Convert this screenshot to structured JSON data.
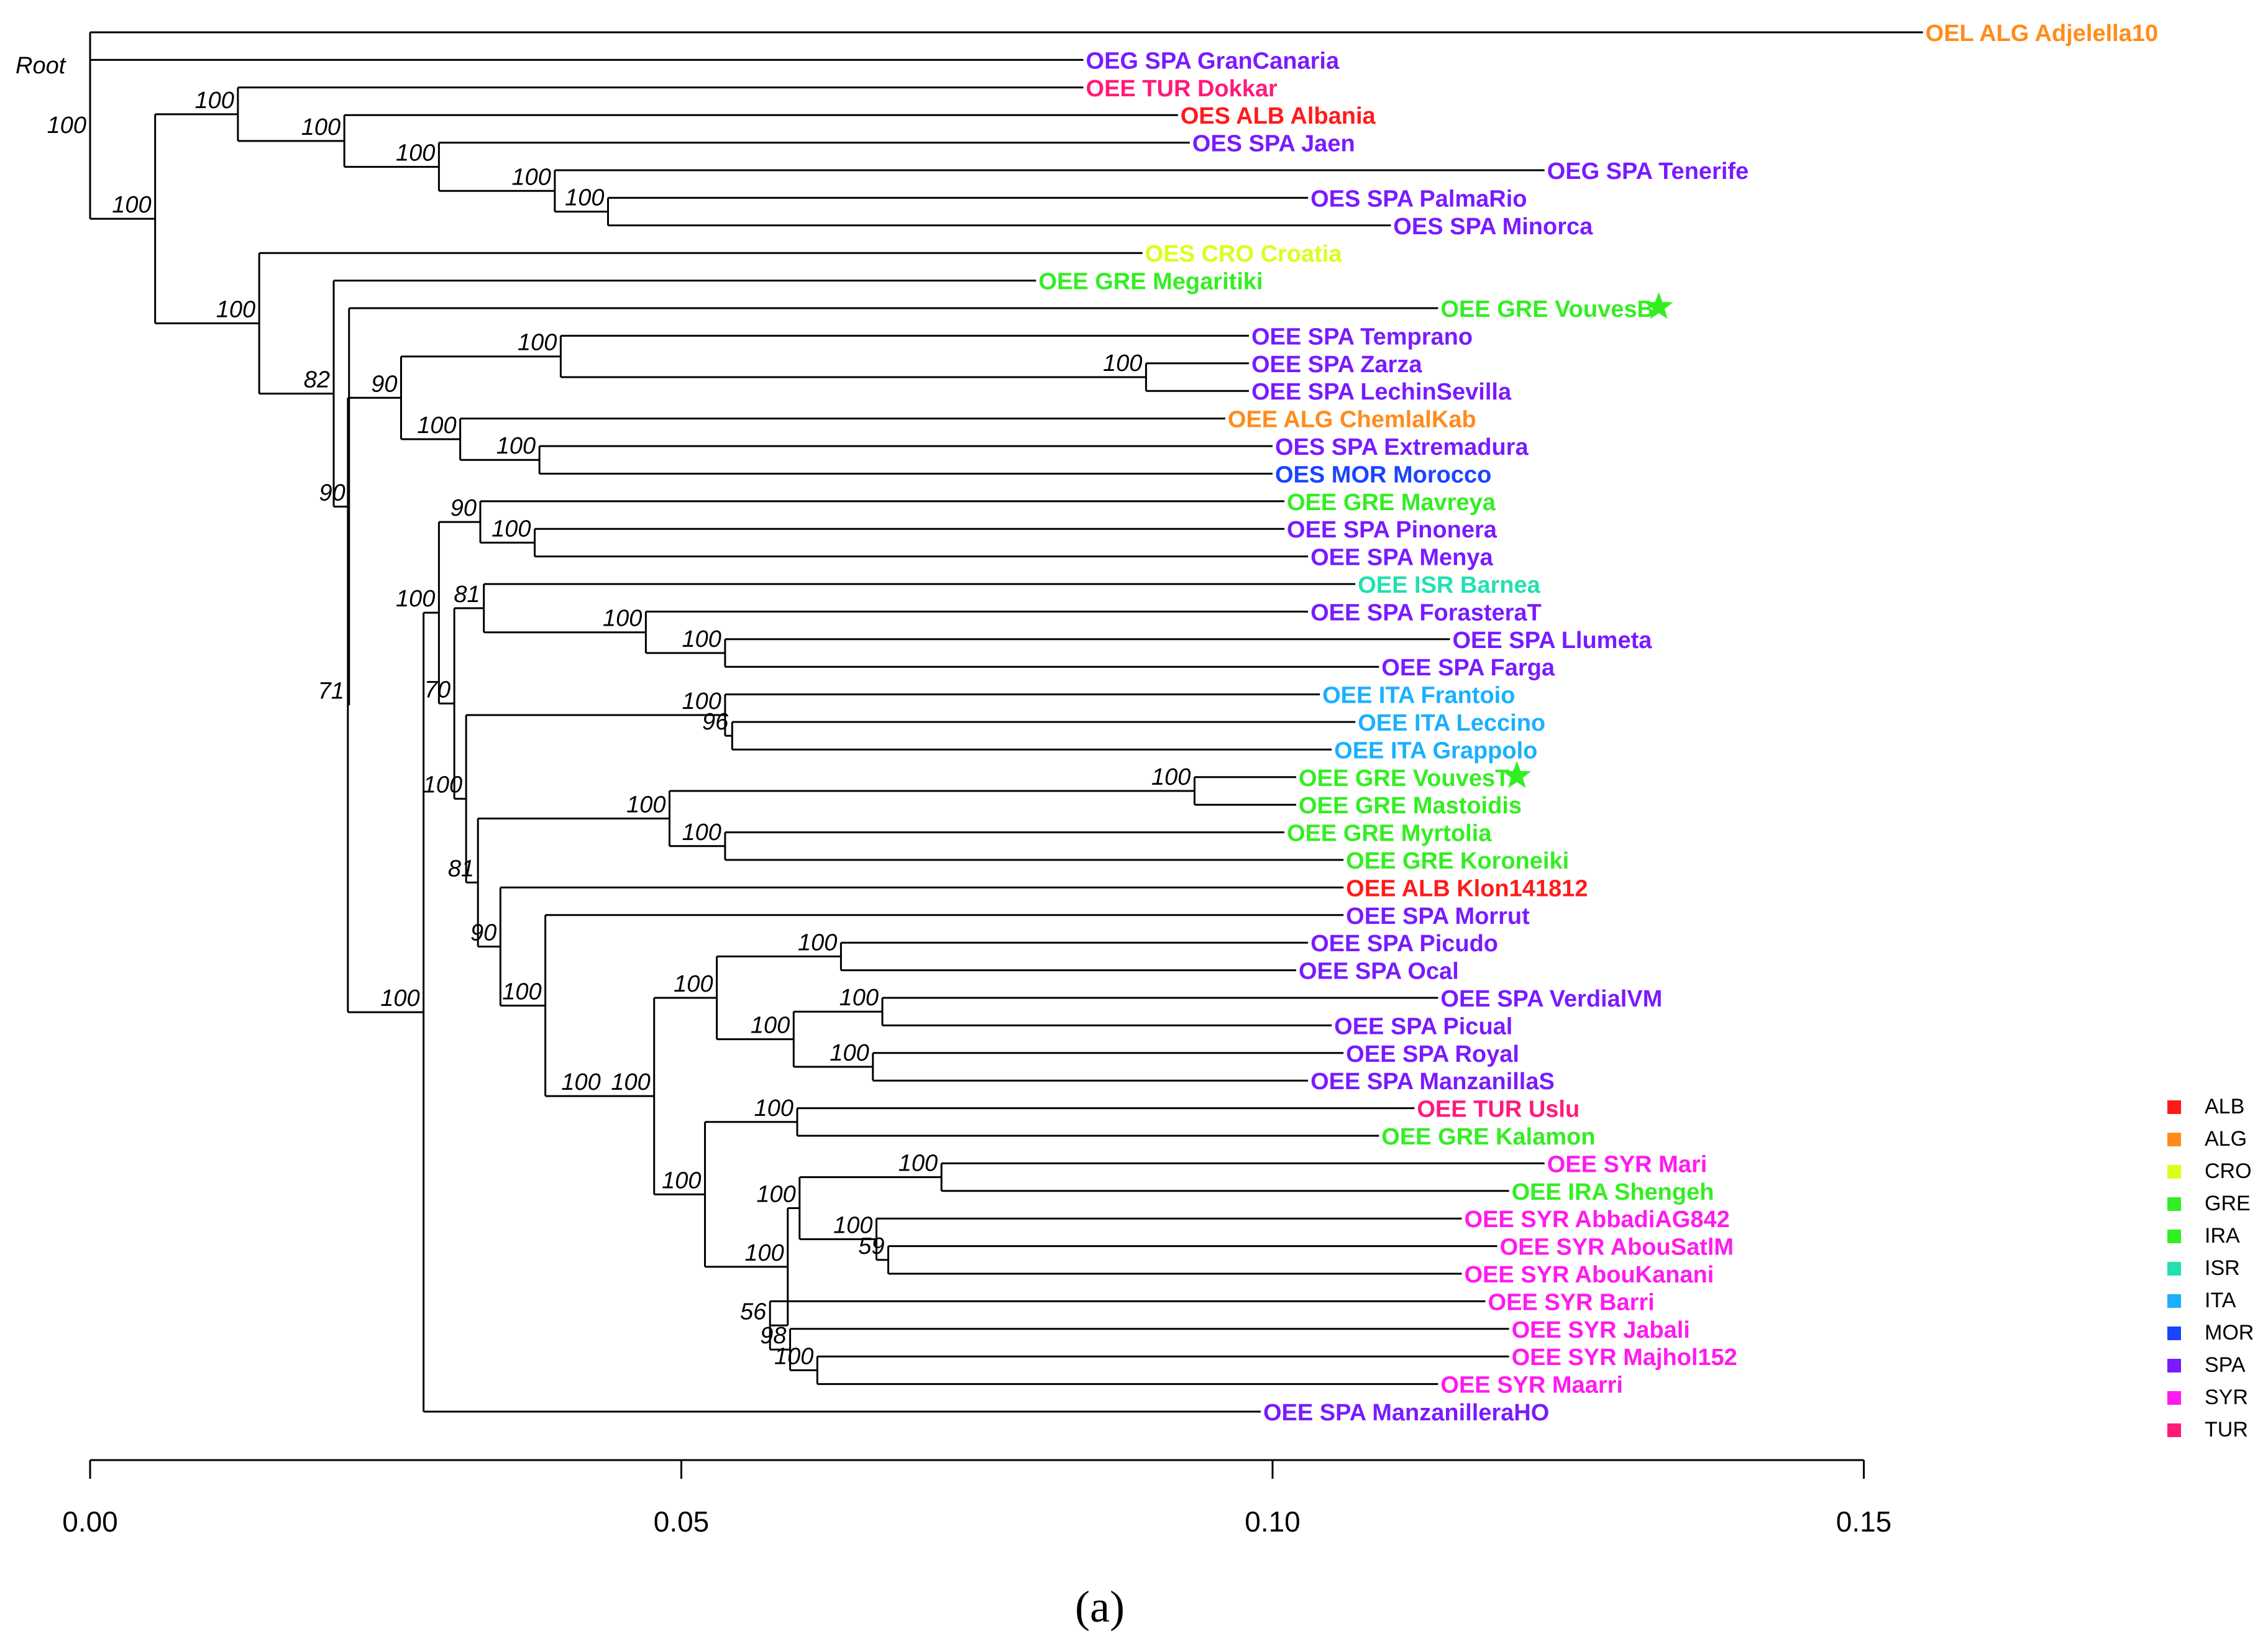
{
  "root_label": "Root",
  "axis": {
    "min": 0,
    "max": 0.15,
    "ticks": [
      "0.00",
      "0.05",
      "0.10",
      "0.15"
    ]
  },
  "caption": "(a)",
  "colors": {
    "ALB": "#ff1a1a",
    "ALG": "#ff8c1a",
    "CRO": "#d9ff1a",
    "GRE": "#33ee22",
    "IRA": "#33ee22",
    "ISR": "#22e0b0",
    "ITA": "#1ab0ff",
    "MOR": "#1a44ff",
    "SPA": "#7a1aff",
    "SYR": "#ff1aee",
    "TUR": "#ff1a7a"
  },
  "legend": [
    "ALB",
    "ALG",
    "CRO",
    "GRE",
    "IRA",
    "ISR",
    "ITA",
    "MOR",
    "SPA",
    "SYR",
    "TUR"
  ],
  "leaves": [
    {
      "id": "L0",
      "label": "OEL ALG Adjelella10",
      "country": "ALG",
      "dist": 0.155
    },
    {
      "id": "L1",
      "label": "OEG SPA GranCanaria",
      "country": "SPA",
      "dist": 0.084
    },
    {
      "id": "L2",
      "label": "OEE TUR Dokkar",
      "country": "TUR",
      "dist": 0.084
    },
    {
      "id": "L3",
      "label": "OES ALB Albania",
      "country": "ALB",
      "dist": 0.092
    },
    {
      "id": "L4",
      "label": "OES SPA Jaen",
      "country": "SPA",
      "dist": 0.093
    },
    {
      "id": "L5",
      "label": "OEG SPA Tenerife",
      "country": "SPA",
      "dist": 0.123
    },
    {
      "id": "L6",
      "label": "OES SPA PalmaRio",
      "country": "SPA",
      "dist": 0.103
    },
    {
      "id": "L7",
      "label": "OES SPA Minorca",
      "country": "SPA",
      "dist": 0.11
    },
    {
      "id": "L8",
      "label": "OES CRO Croatia",
      "country": "CRO",
      "dist": 0.089
    },
    {
      "id": "L9",
      "label": "OEE GRE Megaritiki",
      "country": "GRE",
      "dist": 0.08
    },
    {
      "id": "L10",
      "label": "OEE GRE VouvesB*",
      "country": "GRE",
      "dist": 0.114,
      "star": true
    },
    {
      "id": "L11",
      "label": "OEE SPA Temprano",
      "country": "SPA",
      "dist": 0.098
    },
    {
      "id": "L12",
      "label": "OEE SPA Zarza",
      "country": "SPA",
      "dist": 0.098
    },
    {
      "id": "L13",
      "label": "OEE SPA LechinSevilla",
      "country": "SPA",
      "dist": 0.098
    },
    {
      "id": "L14",
      "label": "OEE ALG ChemlalKab",
      "country": "ALG",
      "dist": 0.096
    },
    {
      "id": "L15",
      "label": "OES SPA Extremadura",
      "country": "SPA",
      "dist": 0.1
    },
    {
      "id": "L16",
      "label": "OES MOR Morocco",
      "country": "MOR",
      "dist": 0.1
    },
    {
      "id": "L17",
      "label": "OEE GRE Mavreya",
      "country": "GRE",
      "dist": 0.101
    },
    {
      "id": "L18",
      "label": "OEE SPA Pinonera",
      "country": "SPA",
      "dist": 0.101
    },
    {
      "id": "L19",
      "label": "OEE SPA Menya",
      "country": "SPA",
      "dist": 0.103
    },
    {
      "id": "L20",
      "label": "OEE ISR Barnea",
      "country": "ISR",
      "dist": 0.107
    },
    {
      "id": "L21",
      "label": "OEE SPA ForasteraT",
      "country": "SPA",
      "dist": 0.103
    },
    {
      "id": "L22",
      "label": "OEE SPA Llumeta",
      "country": "SPA",
      "dist": 0.115
    },
    {
      "id": "L23",
      "label": "OEE SPA Farga",
      "country": "SPA",
      "dist": 0.109
    },
    {
      "id": "L24",
      "label": "OEE ITA Frantoio",
      "country": "ITA",
      "dist": 0.104
    },
    {
      "id": "L25",
      "label": "OEE ITA Leccino",
      "country": "ITA",
      "dist": 0.107
    },
    {
      "id": "L26",
      "label": "OEE ITA Grappolo",
      "country": "ITA",
      "dist": 0.105
    },
    {
      "id": "L27",
      "label": "OEE GRE VouvesT*",
      "country": "GRE",
      "dist": 0.102,
      "star": true
    },
    {
      "id": "L28",
      "label": "OEE GRE Mastoidis",
      "country": "GRE",
      "dist": 0.102
    },
    {
      "id": "L29",
      "label": "OEE GRE Myrtolia",
      "country": "GRE",
      "dist": 0.101
    },
    {
      "id": "L30",
      "label": "OEE GRE Koroneiki",
      "country": "GRE",
      "dist": 0.106
    },
    {
      "id": "L31",
      "label": "OEE ALB Klon141812",
      "country": "ALB",
      "dist": 0.106
    },
    {
      "id": "L32",
      "label": "OEE SPA Morrut",
      "country": "SPA",
      "dist": 0.106
    },
    {
      "id": "L33",
      "label": "OEE SPA Picudo",
      "country": "SPA",
      "dist": 0.103
    },
    {
      "id": "L34",
      "label": "OEE SPA Ocal",
      "country": "SPA",
      "dist": 0.102
    },
    {
      "id": "L35",
      "label": "OEE SPA VerdialVM",
      "country": "SPA",
      "dist": 0.114
    },
    {
      "id": "L36",
      "label": "OEE SPA Picual",
      "country": "SPA",
      "dist": 0.105
    },
    {
      "id": "L37",
      "label": "OEE SPA Royal",
      "country": "SPA",
      "dist": 0.106
    },
    {
      "id": "L38",
      "label": "OEE SPA ManzanillaS",
      "country": "SPA",
      "dist": 0.103
    },
    {
      "id": "L39",
      "label": "OEE TUR Uslu",
      "country": "TUR",
      "dist": 0.112
    },
    {
      "id": "L40",
      "label": "OEE GRE Kalamon",
      "country": "GRE",
      "dist": 0.109
    },
    {
      "id": "L41",
      "label": "OEE SYR Mari",
      "country": "SYR",
      "dist": 0.123
    },
    {
      "id": "L42",
      "label": "OEE IRA Shengeh",
      "country": "IRA",
      "dist": 0.12
    },
    {
      "id": "L43",
      "label": "OEE SYR AbbadiAG842",
      "country": "SYR",
      "dist": 0.116
    },
    {
      "id": "L44",
      "label": "OEE SYR AbouSatlM",
      "country": "SYR",
      "dist": 0.119
    },
    {
      "id": "L45",
      "label": "OEE SYR AbouKanani",
      "country": "SYR",
      "dist": 0.116
    },
    {
      "id": "L46",
      "label": "OEE SYR Barri",
      "country": "SYR",
      "dist": 0.118
    },
    {
      "id": "L47",
      "label": "OEE SYR Jabali",
      "country": "SYR",
      "dist": 0.12
    },
    {
      "id": "L48",
      "label": "OEE SYR Majhol152",
      "country": "SYR",
      "dist": 0.12
    },
    {
      "id": "L49",
      "label": "OEE SYR Maarri",
      "country": "SYR",
      "dist": 0.114
    },
    {
      "id": "L50",
      "label": "OEE SPA ManzanilleraHO",
      "country": "SPA",
      "dist": 0.099
    }
  ],
  "nodes": [
    {
      "id": "N_root",
      "dist": 0.0,
      "boot": "",
      "children": [
        "L0",
        "N1"
      ]
    },
    {
      "id": "N1",
      "dist": 0.0,
      "boot": "100",
      "children": [
        "L1",
        "N2"
      ]
    },
    {
      "id": "N2",
      "dist": 0.0055,
      "boot": "100",
      "children": [
        "N3",
        "N8"
      ]
    },
    {
      "id": "N3",
      "dist": 0.0125,
      "boot": "100",
      "children": [
        "L2",
        "N4"
      ]
    },
    {
      "id": "N4",
      "dist": 0.0215,
      "boot": "100",
      "children": [
        "L3",
        "N5"
      ]
    },
    {
      "id": "N5",
      "dist": 0.0295,
      "boot": "100",
      "children": [
        "L4",
        "N6"
      ]
    },
    {
      "id": "N6",
      "dist": 0.0393,
      "boot": "100",
      "children": [
        "L5",
        "N7"
      ]
    },
    {
      "id": "N7",
      "dist": 0.0438,
      "boot": "100",
      "children": [
        "L6",
        "L7"
      ]
    },
    {
      "id": "N8",
      "dist": 0.0143,
      "boot": "100",
      "children": [
        "L8",
        "N9"
      ]
    },
    {
      "id": "N9",
      "dist": 0.0206,
      "boot": "82",
      "children": [
        "L9",
        "N10"
      ]
    },
    {
      "id": "N10",
      "dist": 0.0219,
      "boot": "90",
      "children": [
        "L10",
        "N11"
      ]
    },
    {
      "id": "N11",
      "dist": 0.0218,
      "boot": "71",
      "children": [
        "N12",
        "N18"
      ]
    },
    {
      "id": "N12",
      "dist": 0.0263,
      "boot": "90",
      "children": [
        "N13",
        "N15"
      ]
    },
    {
      "id": "N13",
      "dist": 0.0398,
      "boot": "100",
      "children": [
        "L11",
        "N14"
      ]
    },
    {
      "id": "N14",
      "dist": 0.0893,
      "boot": "100",
      "children": [
        "L12",
        "L13"
      ]
    },
    {
      "id": "N15",
      "dist": 0.0313,
      "boot": "100",
      "children": [
        "L14",
        "N16"
      ]
    },
    {
      "id": "N16",
      "dist": 0.038,
      "boot": "100",
      "children": [
        "L15",
        "L16"
      ]
    },
    {
      "id": "N18",
      "dist": 0.0282,
      "boot": "100",
      "children": [
        "N19",
        "N41"
      ]
    },
    {
      "id": "N19",
      "dist": 0.0295,
      "boot": "100",
      "children": [
        "N20",
        "N23"
      ]
    },
    {
      "id": "N20",
      "dist": 0.033,
      "boot": "90",
      "children": [
        "L17",
        "N21"
      ]
    },
    {
      "id": "N21",
      "dist": 0.0376,
      "boot": "100",
      "children": [
        "L18",
        "L19"
      ]
    },
    {
      "id": "N23",
      "dist": 0.0308,
      "boot": "70",
      "children": [
        "N24",
        "N28"
      ]
    },
    {
      "id": "N24",
      "dist": 0.0333,
      "boot": "81",
      "children": [
        "L20",
        "N25"
      ]
    },
    {
      "id": "N25",
      "dist": 0.047,
      "boot": "100",
      "children": [
        "L21",
        "N26"
      ]
    },
    {
      "id": "N26",
      "dist": 0.0537,
      "boot": "100",
      "children": [
        "L22",
        "L23"
      ]
    },
    {
      "id": "N28",
      "dist": 0.0318,
      "boot": "100",
      "children": [
        "N29",
        "N31"
      ]
    },
    {
      "id": "N29",
      "dist": 0.0537,
      "boot": "100",
      "children": [
        "L24",
        "N30"
      ]
    },
    {
      "id": "N30",
      "dist": 0.0543,
      "boot": "96",
      "children": [
        "L25",
        "L26"
      ]
    },
    {
      "id": "N31",
      "dist": 0.0328,
      "boot": "81",
      "children": [
        "N32",
        "N35"
      ]
    },
    {
      "id": "N32",
      "dist": 0.049,
      "boot": "100",
      "children": [
        "N33",
        "N34"
      ]
    },
    {
      "id": "N33",
      "dist": 0.0934,
      "boot": "100",
      "children": [
        "L27",
        "L28"
      ]
    },
    {
      "id": "N34",
      "dist": 0.0537,
      "boot": "100",
      "children": [
        "L29",
        "L30"
      ]
    },
    {
      "id": "N35",
      "dist": 0.0347,
      "boot": "90",
      "children": [
        "L31",
        "N36"
      ]
    },
    {
      "id": "N36",
      "dist": 0.0385,
      "boot": "100",
      "children": [
        "L32",
        "N37"
      ]
    },
    {
      "id": "N37",
      "dist": 0.0435,
      "boot": "100",
      "children": [
        "N38",
        "N42"
      ]
    },
    {
      "id": "N38",
      "dist": 0.0477,
      "boot": "100",
      "children": [
        "N39",
        "N40"
      ]
    },
    {
      "id": "N39",
      "dist": 0.053,
      "boot": "100",
      "children": [
        "N39a",
        "N39b"
      ]
    },
    {
      "id": "N39a",
      "dist": 0.0635,
      "boot": "100",
      "children": [
        "L33",
        "L34"
      ]
    },
    {
      "id": "N39b",
      "dist": 0.0595,
      "boot": "100",
      "children": [
        "N39c",
        "N39d"
      ]
    },
    {
      "id": "N39c",
      "dist": 0.067,
      "boot": "100",
      "children": [
        "L35",
        "L36"
      ]
    },
    {
      "id": "N39d",
      "dist": 0.0662,
      "boot": "100",
      "children": [
        "L37",
        "L38"
      ]
    },
    {
      "id": "N40",
      "dist": 0.052,
      "boot": "100",
      "children": [
        "N40a",
        "N40b"
      ]
    },
    {
      "id": "N40a",
      "dist": 0.0598,
      "boot": "100",
      "children": [
        "L39",
        "L40"
      ]
    },
    {
      "id": "N40b",
      "dist": 0.059,
      "boot": "100",
      "children": [
        "N40c",
        "N40e"
      ]
    },
    {
      "id": "N40c",
      "dist": 0.06,
      "boot": "100",
      "children": [
        "N40f",
        "N40d"
      ]
    },
    {
      "id": "N40f",
      "dist": 0.072,
      "boot": "100",
      "children": [
        "L41",
        "L42"
      ]
    },
    {
      "id": "N40d",
      "dist": 0.0665,
      "boot": "100",
      "children": [
        "L43",
        "N40g"
      ]
    },
    {
      "id": "N40g",
      "dist": 0.0675,
      "boot": "59",
      "children": [
        "L44",
        "L45"
      ]
    },
    {
      "id": "N40e",
      "dist": 0.0575,
      "boot": "56",
      "children": [
        "L46",
        "N40h"
      ]
    },
    {
      "id": "N40h",
      "dist": 0.0592,
      "boot": "98",
      "children": [
        "L47",
        "N40i"
      ]
    },
    {
      "id": "N40i",
      "dist": 0.0615,
      "boot": "100",
      "children": [
        "L48",
        "L49"
      ]
    },
    {
      "id": "N42",
      "dist": 0.0,
      "boot": "",
      "children": []
    },
    {
      "id": "N41",
      "dist": 0.0282,
      "boot": "",
      "children": [
        "L50"
      ]
    }
  ]
}
